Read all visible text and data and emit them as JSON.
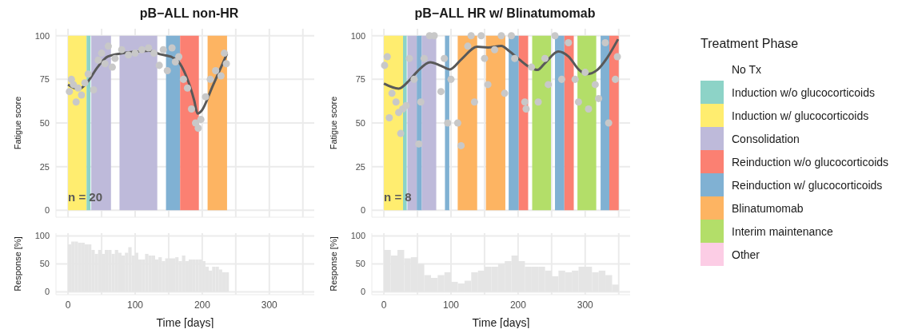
{
  "chart_data": [
    {
      "type": "line",
      "title": "pB−ALL non-HR",
      "ylabel": "Fatigue score",
      "xlim": [
        -18,
        367
      ],
      "ylim": [
        -4,
        104
      ],
      "xticks": [
        0,
        {
          "value": 50,
          "label": null
        },
        100,
        {
          "value": 150,
          "label": null
        },
        200,
        {
          "value": 250,
          "label": null
        },
        300,
        {
          "value": 350,
          "label": null
        }
      ],
      "yticks": [
        0,
        25,
        50,
        75,
        100
      ],
      "grid": true,
      "tick_labels": "y",
      "annotations": [
        "n = 20"
      ],
      "bands": [
        {
          "axis": "x",
          "from": 0,
          "to": 27.6,
          "color": "#ffed6f"
        },
        {
          "axis": "x",
          "from": 27.6,
          "to": 33.5,
          "color": "#8dd3c7"
        },
        {
          "axis": "x",
          "from": 34.6,
          "to": 64,
          "color": "#bebada"
        },
        {
          "axis": "x",
          "from": 76.7,
          "to": 133,
          "color": "#bebada"
        },
        {
          "axis": "x",
          "from": 146,
          "to": 167,
          "color": "#80b1d3"
        },
        {
          "axis": "x",
          "from": 167,
          "to": 195,
          "color": "#fb8072"
        },
        {
          "axis": "x",
          "from": 208,
          "to": 237,
          "color": "#fdb462"
        }
      ],
      "series": [
        {
          "type": "scatter",
          "color": "#c8c8c8",
          "x": [
            2,
            5,
            8,
            12,
            15,
            20,
            25,
            30,
            38,
            45,
            50,
            55,
            60,
            66,
            70,
            80,
            90,
            100,
            110,
            120,
            128,
            136,
            142,
            148,
            155,
            160,
            165,
            172,
            178,
            184,
            190,
            194,
            198,
            205,
            212,
            220,
            228,
            233,
            236
          ],
          "values": [
            68,
            75,
            72,
            62,
            70,
            66,
            73,
            78,
            69,
            86,
            90,
            84,
            94,
            82,
            87,
            92,
            89,
            90,
            92,
            93,
            90,
            83,
            92,
            80,
            93,
            85,
            88,
            75,
            70,
            58,
            50,
            47,
            52,
            65,
            75,
            80,
            77,
            90,
            84
          ]
        },
        {
          "type": "line",
          "color": "#595959",
          "x": [
            0,
            16,
            28,
            44,
            59,
            82,
            106,
            121,
            137,
            153,
            164,
            176,
            188,
            193,
            199,
            215,
            237
          ],
          "values": [
            72,
            69.4,
            73,
            82,
            88,
            90,
            91,
            91.4,
            89.4,
            88,
            85.5,
            77,
            63,
            55.4,
            57,
            70.7,
            89.7
          ]
        }
      ]
    },
    {
      "type": "line",
      "title": "pB−ALL HR w/ Blinatumomab",
      "ylabel": "Fatigue score",
      "xlim": [
        -18,
        367
      ],
      "ylim": [
        -4,
        104
      ],
      "xticks": [
        0,
        {
          "value": 50,
          "label": null
        },
        100,
        {
          "value": 150,
          "label": null
        },
        200,
        {
          "value": 250,
          "label": null
        },
        300,
        {
          "value": 350,
          "label": null
        }
      ],
      "yticks": [
        0,
        25,
        50,
        75,
        100
      ],
      "grid": true,
      "tick_labels": "y",
      "annotations": [
        "n = 8"
      ],
      "bands": [
        {
          "axis": "x",
          "from": 0,
          "to": 28.5,
          "color": "#ffed6f"
        },
        {
          "axis": "x",
          "from": 28.5,
          "to": 34,
          "color": "#8dd3c7"
        },
        {
          "axis": "x",
          "from": 35,
          "to": 49,
          "color": "#bebada"
        },
        {
          "axis": "x",
          "from": 49,
          "to": 56.5,
          "color": "#80b1d3"
        },
        {
          "axis": "x",
          "from": 56.5,
          "to": 78,
          "color": "#bebada"
        },
        {
          "axis": "x",
          "from": 91,
          "to": 97.5,
          "color": "#80b1d3"
        },
        {
          "axis": "x",
          "from": 110,
          "to": 139,
          "color": "#fdb462"
        },
        {
          "axis": "x",
          "from": 152,
          "to": 181,
          "color": "#fdb462"
        },
        {
          "axis": "x",
          "from": 186,
          "to": 201,
          "color": "#80b1d3"
        },
        {
          "axis": "x",
          "from": 201,
          "to": 215,
          "color": "#fb8072"
        },
        {
          "axis": "x",
          "from": 221,
          "to": 249,
          "color": "#b3de69"
        },
        {
          "axis": "x",
          "from": 255,
          "to": 269,
          "color": "#80b1d3"
        },
        {
          "axis": "x",
          "from": 269,
          "to": 283,
          "color": "#fb8072"
        },
        {
          "axis": "x",
          "from": 288.5,
          "to": 316.5,
          "color": "#b3de69"
        },
        {
          "axis": "x",
          "from": 323,
          "to": 336,
          "color": "#80b1d3"
        },
        {
          "axis": "x",
          "from": 336,
          "to": 350,
          "color": "#fb8072"
        }
      ],
      "series": [
        {
          "type": "scatter",
          "color": "#c8c8c8",
          "x": [
            1,
            5,
            8,
            12,
            18,
            22,
            25,
            28,
            33,
            38,
            45,
            52,
            55,
            60,
            68,
            75,
            85,
            90,
            95,
            100,
            110,
            115,
            125,
            130,
            135,
            145,
            150,
            155,
            165,
            175,
            180,
            190,
            195,
            210,
            212,
            220,
            230,
            240,
            245,
            255,
            265,
            275,
            285,
            290,
            300,
            305,
            315,
            320,
            330,
            335,
            345,
            348
          ],
          "values": [
            83,
            88,
            53,
            67,
            62,
            56,
            44,
            58,
            60,
            87,
            75,
            38,
            62,
            87,
            100,
            100,
            68,
            87,
            50,
            75,
            50,
            37,
            94,
            100,
            62,
            100,
            87,
            72,
            92,
            100,
            67,
            100,
            87,
            62,
            58,
            82,
            62,
            87,
            72,
            100,
            75,
            96,
            75,
            62,
            79,
            58,
            72,
            64,
            96,
            50,
            75,
            88
          ]
        },
        {
          "type": "line",
          "color": "#595959",
          "x": [
            0,
            22,
            38,
            50,
            69,
            85,
            98,
            116,
            139,
            155,
            175,
            186,
            201,
            217,
            229,
            240,
            260,
            275,
            291,
            302,
            318,
            333,
            349
          ],
          "values": [
            72.6,
            69.7,
            74.5,
            79.6,
            84.8,
            82.8,
            80.7,
            86.7,
            93.7,
            93.3,
            94.2,
            91.4,
            86.7,
            82,
            80.4,
            84.3,
            91,
            88.2,
            80.4,
            78,
            80.4,
            87.5,
            98
          ]
        }
      ]
    },
    {
      "type": "histogram",
      "xlabel": "Time [days]",
      "ylabel": "Response [%]",
      "color": "#e5e5e5",
      "xlim": [
        -18,
        367
      ],
      "ylim": [
        -5,
        105
      ],
      "xticks": [
        0,
        {
          "value": 50,
          "label": null
        },
        100,
        {
          "value": 150,
          "label": null
        },
        200,
        {
          "value": 250,
          "label": null
        },
        300,
        {
          "value": 350,
          "label": null
        }
      ],
      "yticks": [
        0,
        50,
        100
      ],
      "grid": true,
      "bins": [
        0,
        5,
        10,
        15,
        20,
        25,
        30,
        35,
        40,
        45,
        50,
        55,
        60,
        65,
        70,
        75,
        80,
        85,
        90,
        95,
        100,
        105,
        110,
        115,
        120,
        125,
        130,
        135,
        140,
        145,
        150,
        155,
        160,
        165,
        170,
        175,
        180,
        185,
        190,
        195,
        200,
        205,
        210,
        215,
        220,
        225,
        230,
        235,
        240
      ],
      "values": [
        85,
        90,
        90,
        88,
        88,
        85,
        85,
        75,
        68,
        75,
        68,
        75,
        75,
        68,
        75,
        70,
        65,
        70,
        80,
        65,
        70,
        58,
        58,
        68,
        65,
        65,
        58,
        62,
        55,
        60,
        60,
        60,
        62,
        55,
        65,
        55,
        58,
        58,
        58,
        58,
        55,
        45,
        38,
        45,
        45,
        40,
        35,
        35
      ]
    },
    {
      "type": "histogram",
      "xlabel": "Time [days]",
      "ylabel": "Response [%]",
      "color": "#e5e5e5",
      "xlim": [
        -18,
        367
      ],
      "ylim": [
        -5,
        105
      ],
      "xticks": [
        0,
        {
          "value": 50,
          "label": null
        },
        100,
        {
          "value": 150,
          "label": null
        },
        200,
        {
          "value": 250,
          "label": null
        },
        300,
        {
          "value": 350,
          "label": null
        }
      ],
      "yticks": [
        0,
        50,
        100
      ],
      "grid": true,
      "bins": [
        0,
        10,
        20,
        30,
        40,
        50,
        60,
        70,
        80,
        90,
        100,
        110,
        120,
        130,
        140,
        150,
        160,
        170,
        180,
        190,
        200,
        210,
        220,
        230,
        240,
        250,
        260,
        270,
        280,
        290,
        300,
        310,
        320,
        330,
        340,
        350
      ],
      "values": [
        75,
        65,
        75,
        60,
        62,
        50,
        30,
        25,
        30,
        35,
        18,
        15,
        20,
        35,
        38,
        45,
        45,
        50,
        55,
        65,
        55,
        45,
        45,
        45,
        38,
        28,
        38,
        35,
        38,
        45,
        45,
        35,
        38,
        30,
        13
      ]
    },
    {
      "type": "other",
      "legend_title": "Treatment Phase",
      "categories": [
        "No Tx",
        "Induction w/o glucocorticoids",
        "Induction w/ glucocorticoids",
        "Consolidation",
        "Reinduction w/o glucocorticoids",
        "Reinduction w/ glucocorticoids",
        "Blinatumomab",
        "Interim maintenance",
        "Other"
      ],
      "colors": [
        "#ffffff",
        "#8dd3c7",
        "#ffed6f",
        "#bebada",
        "#fb8072",
        "#80b1d3",
        "#fdb462",
        "#b3de69",
        "#fccde5"
      ]
    }
  ]
}
